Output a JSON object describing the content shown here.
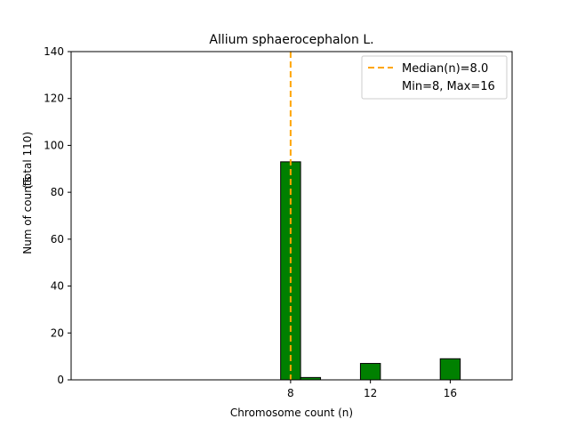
{
  "chart_data": {
    "type": "bar",
    "title": "Allium sphaerocephalon L.",
    "xlabel": "Chromosome count (n)",
    "ylabel": "Num of counts",
    "ylabel_secondary": "(Total 110)",
    "xlim": [
      -3,
      19.1
    ],
    "ylim": [
      0,
      140
    ],
    "xticks": [
      8,
      12,
      16
    ],
    "yticks": [
      0,
      20,
      40,
      60,
      80,
      100,
      120,
      140
    ],
    "bar_width": 1.0,
    "bars": [
      {
        "x": 8,
        "value": 93
      },
      {
        "x": 9,
        "value": 1
      },
      {
        "x": 12,
        "value": 7
      },
      {
        "x": 16,
        "value": 9
      }
    ],
    "median_line": {
      "x": 8,
      "label": "Median(n)=8.0",
      "color": "#ffa500"
    },
    "legend": {
      "position": "top-right",
      "entries": [
        "Median(n)=8.0",
        "Min=8, Max=16"
      ]
    },
    "bar_color": "#008000",
    "grid": false
  }
}
